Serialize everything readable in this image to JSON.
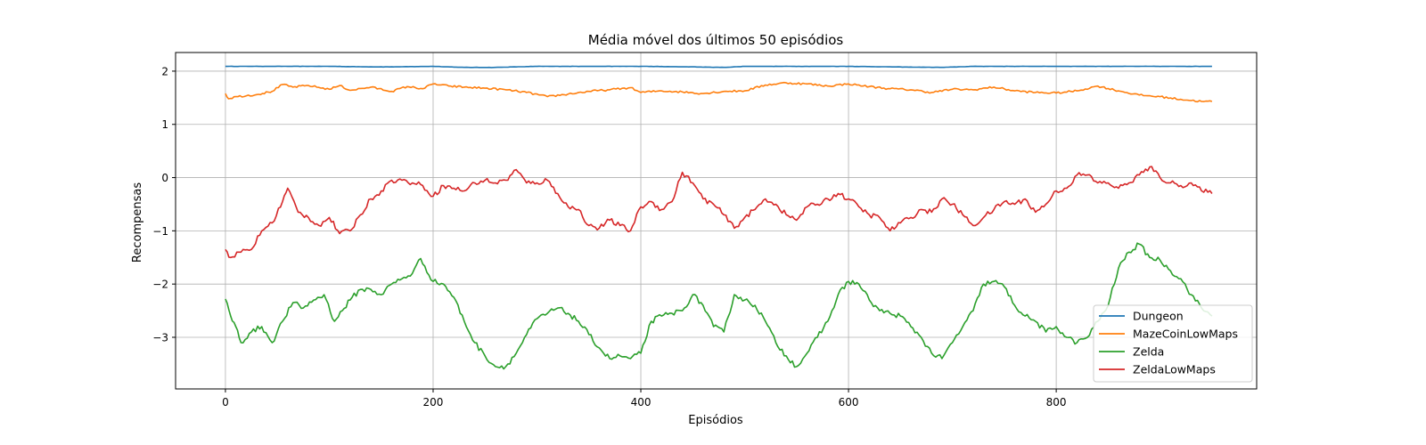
{
  "chart_data": {
    "type": "line",
    "title": "Média móvel dos últimos 50 episódios",
    "xlabel": "Episódios",
    "ylabel": "Recompensas",
    "xlim": [
      -48,
      993
    ],
    "ylim": [
      -3.97,
      2.35
    ],
    "xticks": [
      0,
      200,
      400,
      600,
      800
    ],
    "yticks": [
      2,
      1,
      0,
      -1,
      -2,
      -3
    ],
    "grid": true,
    "legend_position": "lower-right",
    "series": [
      {
        "name": "Dungeon",
        "color": "#1f77b4",
        "points": [
          [
            0,
            2.09
          ],
          [
            100,
            2.09
          ],
          [
            140,
            2.08
          ],
          [
            160,
            2.08
          ],
          [
            200,
            2.09
          ],
          [
            230,
            2.07
          ],
          [
            260,
            2.07
          ],
          [
            300,
            2.09
          ],
          [
            400,
            2.09
          ],
          [
            450,
            2.08
          ],
          [
            480,
            2.07
          ],
          [
            500,
            2.09
          ],
          [
            600,
            2.09
          ],
          [
            640,
            2.08
          ],
          [
            690,
            2.07
          ],
          [
            720,
            2.09
          ],
          [
            800,
            2.09
          ],
          [
            950,
            2.09
          ]
        ]
      },
      {
        "name": "MazeCoinLowMaps",
        "color": "#ff7f0e",
        "points": [
          [
            0,
            1.58
          ],
          [
            3,
            1.48
          ],
          [
            10,
            1.52
          ],
          [
            30,
            1.56
          ],
          [
            45,
            1.62
          ],
          [
            55,
            1.75
          ],
          [
            65,
            1.7
          ],
          [
            80,
            1.73
          ],
          [
            100,
            1.66
          ],
          [
            110,
            1.73
          ],
          [
            120,
            1.64
          ],
          [
            140,
            1.7
          ],
          [
            160,
            1.62
          ],
          [
            175,
            1.71
          ],
          [
            190,
            1.67
          ],
          [
            200,
            1.76
          ],
          [
            215,
            1.72
          ],
          [
            230,
            1.7
          ],
          [
            250,
            1.68
          ],
          [
            270,
            1.65
          ],
          [
            290,
            1.6
          ],
          [
            310,
            1.52
          ],
          [
            330,
            1.57
          ],
          [
            350,
            1.62
          ],
          [
            370,
            1.65
          ],
          [
            390,
            1.69
          ],
          [
            400,
            1.6
          ],
          [
            420,
            1.63
          ],
          [
            440,
            1.61
          ],
          [
            460,
            1.58
          ],
          [
            480,
            1.62
          ],
          [
            500,
            1.63
          ],
          [
            520,
            1.74
          ],
          [
            540,
            1.78
          ],
          [
            560,
            1.76
          ],
          [
            580,
            1.72
          ],
          [
            600,
            1.76
          ],
          [
            620,
            1.71
          ],
          [
            640,
            1.67
          ],
          [
            660,
            1.65
          ],
          [
            680,
            1.6
          ],
          [
            700,
            1.66
          ],
          [
            720,
            1.65
          ],
          [
            740,
            1.7
          ],
          [
            760,
            1.63
          ],
          [
            780,
            1.6
          ],
          [
            800,
            1.59
          ],
          [
            820,
            1.63
          ],
          [
            840,
            1.72
          ],
          [
            860,
            1.63
          ],
          [
            880,
            1.55
          ],
          [
            900,
            1.52
          ],
          [
            920,
            1.47
          ],
          [
            940,
            1.43
          ],
          [
            950,
            1.43
          ]
        ]
      },
      {
        "name": "Zelda",
        "color": "#2ca02c",
        "points": [
          [
            0,
            -2.28
          ],
          [
            5,
            -2.6
          ],
          [
            10,
            -2.8
          ],
          [
            15,
            -3.1
          ],
          [
            25,
            -2.9
          ],
          [
            35,
            -2.8
          ],
          [
            45,
            -3.1
          ],
          [
            55,
            -2.7
          ],
          [
            65,
            -2.35
          ],
          [
            75,
            -2.45
          ],
          [
            85,
            -2.3
          ],
          [
            95,
            -2.2
          ],
          [
            105,
            -2.7
          ],
          [
            120,
            -2.3
          ],
          [
            130,
            -2.1
          ],
          [
            140,
            -2.1
          ],
          [
            150,
            -2.2
          ],
          [
            160,
            -2.0
          ],
          [
            170,
            -1.9
          ],
          [
            180,
            -1.8
          ],
          [
            188,
            -1.52
          ],
          [
            200,
            -1.95
          ],
          [
            210,
            -2.0
          ],
          [
            220,
            -2.25
          ],
          [
            230,
            -2.7
          ],
          [
            240,
            -3.1
          ],
          [
            250,
            -3.35
          ],
          [
            260,
            -3.55
          ],
          [
            270,
            -3.55
          ],
          [
            280,
            -3.3
          ],
          [
            290,
            -2.95
          ],
          [
            300,
            -2.65
          ],
          [
            310,
            -2.55
          ],
          [
            320,
            -2.45
          ],
          [
            330,
            -2.55
          ],
          [
            340,
            -2.7
          ],
          [
            350,
            -2.95
          ],
          [
            360,
            -3.2
          ],
          [
            370,
            -3.4
          ],
          [
            380,
            -3.35
          ],
          [
            390,
            -3.4
          ],
          [
            400,
            -3.3
          ],
          [
            410,
            -2.7
          ],
          [
            420,
            -2.6
          ],
          [
            430,
            -2.55
          ],
          [
            440,
            -2.5
          ],
          [
            450,
            -2.2
          ],
          [
            460,
            -2.4
          ],
          [
            470,
            -2.8
          ],
          [
            480,
            -2.9
          ],
          [
            490,
            -2.2
          ],
          [
            500,
            -2.3
          ],
          [
            510,
            -2.4
          ],
          [
            520,
            -2.7
          ],
          [
            530,
            -3.1
          ],
          [
            540,
            -3.35
          ],
          [
            550,
            -3.55
          ],
          [
            560,
            -3.3
          ],
          [
            570,
            -3.0
          ],
          [
            580,
            -2.7
          ],
          [
            590,
            -2.2
          ],
          [
            600,
            -1.95
          ],
          [
            610,
            -2.0
          ],
          [
            620,
            -2.3
          ],
          [
            630,
            -2.5
          ],
          [
            640,
            -2.55
          ],
          [
            650,
            -2.6
          ],
          [
            660,
            -2.8
          ],
          [
            670,
            -3.0
          ],
          [
            680,
            -3.3
          ],
          [
            690,
            -3.4
          ],
          [
            700,
            -3.1
          ],
          [
            710,
            -2.8
          ],
          [
            720,
            -2.5
          ],
          [
            730,
            -2.0
          ],
          [
            740,
            -1.95
          ],
          [
            750,
            -2.05
          ],
          [
            760,
            -2.4
          ],
          [
            770,
            -2.6
          ],
          [
            780,
            -2.7
          ],
          [
            790,
            -2.9
          ],
          [
            800,
            -2.8
          ],
          [
            810,
            -3.0
          ],
          [
            820,
            -3.1
          ],
          [
            830,
            -3.0
          ],
          [
            840,
            -2.7
          ],
          [
            850,
            -2.4
          ],
          [
            860,
            -1.7
          ],
          [
            870,
            -1.4
          ],
          [
            880,
            -1.25
          ],
          [
            890,
            -1.5
          ],
          [
            900,
            -1.55
          ],
          [
            910,
            -1.75
          ],
          [
            920,
            -1.9
          ],
          [
            930,
            -2.2
          ],
          [
            940,
            -2.45
          ],
          [
            950,
            -2.6
          ]
        ]
      },
      {
        "name": "ZeldaLowMaps",
        "color": "#d62728",
        "points": [
          [
            0,
            -1.35
          ],
          [
            5,
            -1.5
          ],
          [
            15,
            -1.4
          ],
          [
            25,
            -1.35
          ],
          [
            35,
            -1.0
          ],
          [
            45,
            -0.85
          ],
          [
            55,
            -0.45
          ],
          [
            60,
            -0.2
          ],
          [
            70,
            -0.65
          ],
          [
            80,
            -0.75
          ],
          [
            90,
            -0.9
          ],
          [
            100,
            -0.75
          ],
          [
            110,
            -1.05
          ],
          [
            120,
            -1.0
          ],
          [
            130,
            -0.7
          ],
          [
            140,
            -0.4
          ],
          [
            150,
            -0.25
          ],
          [
            160,
            -0.05
          ],
          [
            170,
            -0.05
          ],
          [
            180,
            -0.1
          ],
          [
            190,
            -0.15
          ],
          [
            200,
            -0.35
          ],
          [
            210,
            -0.15
          ],
          [
            220,
            -0.2
          ],
          [
            230,
            -0.25
          ],
          [
            240,
            -0.1
          ],
          [
            250,
            -0.05
          ],
          [
            260,
            -0.1
          ],
          [
            270,
            -0.05
          ],
          [
            280,
            0.15
          ],
          [
            290,
            -0.1
          ],
          [
            300,
            -0.1
          ],
          [
            310,
            -0.05
          ],
          [
            320,
            -0.3
          ],
          [
            330,
            -0.55
          ],
          [
            340,
            -0.6
          ],
          [
            350,
            -0.9
          ],
          [
            360,
            -0.95
          ],
          [
            370,
            -0.8
          ],
          [
            380,
            -0.9
          ],
          [
            390,
            -1.0
          ],
          [
            400,
            -0.55
          ],
          [
            410,
            -0.45
          ],
          [
            420,
            -0.6
          ],
          [
            430,
            -0.45
          ],
          [
            440,
            0.1
          ],
          [
            450,
            -0.1
          ],
          [
            460,
            -0.4
          ],
          [
            470,
            -0.5
          ],
          [
            480,
            -0.7
          ],
          [
            490,
            -0.95
          ],
          [
            500,
            -0.75
          ],
          [
            510,
            -0.6
          ],
          [
            520,
            -0.4
          ],
          [
            530,
            -0.5
          ],
          [
            540,
            -0.7
          ],
          [
            550,
            -0.8
          ],
          [
            560,
            -0.55
          ],
          [
            570,
            -0.5
          ],
          [
            580,
            -0.4
          ],
          [
            590,
            -0.3
          ],
          [
            600,
            -0.4
          ],
          [
            610,
            -0.55
          ],
          [
            620,
            -0.7
          ],
          [
            630,
            -0.75
          ],
          [
            640,
            -1.0
          ],
          [
            650,
            -0.85
          ],
          [
            660,
            -0.75
          ],
          [
            670,
            -0.6
          ],
          [
            680,
            -0.65
          ],
          [
            690,
            -0.4
          ],
          [
            700,
            -0.5
          ],
          [
            710,
            -0.7
          ],
          [
            720,
            -0.9
          ],
          [
            730,
            -0.75
          ],
          [
            740,
            -0.6
          ],
          [
            750,
            -0.45
          ],
          [
            760,
            -0.5
          ],
          [
            770,
            -0.4
          ],
          [
            780,
            -0.65
          ],
          [
            790,
            -0.5
          ],
          [
            800,
            -0.25
          ],
          [
            810,
            -0.2
          ],
          [
            820,
            0.05
          ],
          [
            830,
            0.05
          ],
          [
            840,
            -0.1
          ],
          [
            850,
            -0.1
          ],
          [
            860,
            -0.2
          ],
          [
            870,
            -0.1
          ],
          [
            880,
            0.05
          ],
          [
            890,
            0.2
          ],
          [
            900,
            0.0
          ],
          [
            910,
            -0.1
          ],
          [
            920,
            -0.15
          ],
          [
            930,
            -0.1
          ],
          [
            940,
            -0.25
          ],
          [
            950,
            -0.3
          ]
        ]
      }
    ]
  }
}
